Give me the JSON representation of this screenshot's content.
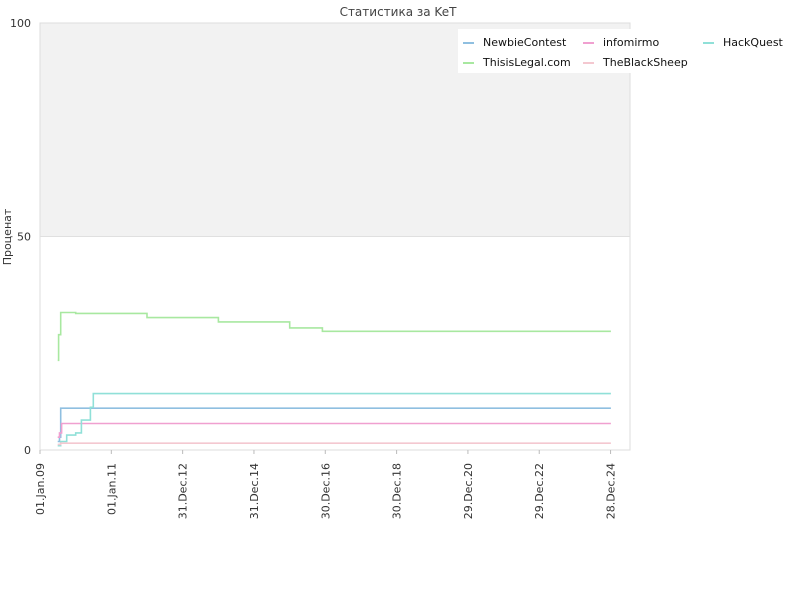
{
  "chart_data": {
    "type": "line",
    "title": "Статистика за KeT",
    "xlabel": "",
    "ylabel": "Проценат",
    "ylim": [
      0,
      100
    ],
    "xlim": [
      "2009-01-01",
      "2025-07-15"
    ],
    "y_ticks": [
      "0",
      "50",
      "100"
    ],
    "x_ticks": [
      {
        "date": "2009-01-01",
        "label": "01.Jan.09"
      },
      {
        "date": "2011-01-01",
        "label": "01.Jan.11"
      },
      {
        "date": "2012-12-31",
        "label": "31.Dec.12"
      },
      {
        "date": "2014-12-31",
        "label": "31.Dec.14"
      },
      {
        "date": "2016-12-30",
        "label": "30.Dec.16"
      },
      {
        "date": "2018-12-30",
        "label": "30.Dec.18"
      },
      {
        "date": "2020-12-29",
        "label": "29.Dec.20"
      },
      {
        "date": "2022-12-29",
        "label": "29.Dec.22"
      },
      {
        "date": "2024-12-28",
        "label": "28.Dec.24"
      }
    ],
    "grid": true,
    "legend": "top-right",
    "upper_band_color": "#f2f2f2",
    "series": [
      {
        "name": "NewbieContest",
        "color": "#8fbfe0",
        "points": [
          [
            "2009-07-01",
            2
          ],
          [
            "2009-07-20",
            3
          ],
          [
            "2009-08-01",
            9.8
          ],
          [
            "2010-01-01",
            9.8
          ],
          [
            "2025-01-01",
            9.8
          ]
        ]
      },
      {
        "name": "infomirmo",
        "color": "#f0a0d0",
        "points": [
          [
            "2009-07-01",
            3
          ],
          [
            "2009-07-20",
            4
          ],
          [
            "2009-08-10",
            6.2
          ],
          [
            "2025-01-01",
            6.2
          ]
        ]
      },
      {
        "name": "HackQuest",
        "color": "#90e0d8",
        "points": [
          [
            "2009-07-01",
            1
          ],
          [
            "2009-08-01",
            2
          ],
          [
            "2009-10-01",
            3.5
          ],
          [
            "2010-01-01",
            4
          ],
          [
            "2010-03-01",
            7
          ],
          [
            "2010-06-01",
            10
          ],
          [
            "2010-07-01",
            13.2
          ],
          [
            "2025-01-01",
            13.2
          ]
        ]
      },
      {
        "name": "ThisisLegal.com",
        "color": "#a8e8a0",
        "points": [
          [
            "2009-07-01",
            21
          ],
          [
            "2009-07-10",
            27
          ],
          [
            "2009-08-01",
            32.2
          ],
          [
            "2010-01-01",
            32
          ],
          [
            "2012-01-01",
            31
          ],
          [
            "2014-01-01",
            30
          ],
          [
            "2016-01-01",
            28.6
          ],
          [
            "2016-12-01",
            27.8
          ],
          [
            "2025-01-01",
            27.8
          ]
        ]
      },
      {
        "name": "TheBlackSheep",
        "color": "#f4c8d0",
        "points": [
          [
            "2009-07-01",
            1.3
          ],
          [
            "2009-08-01",
            1.6
          ],
          [
            "2025-01-01",
            1.6
          ]
        ]
      }
    ]
  }
}
